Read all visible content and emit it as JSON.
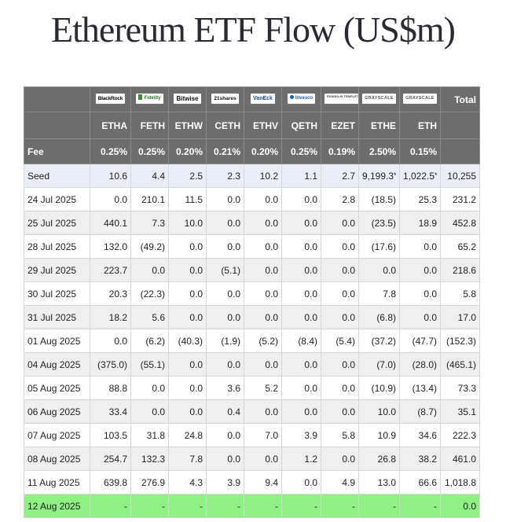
{
  "title": "Ethereum ETF Flow (US$m)",
  "issuers": [
    {
      "name": "BlackRock",
      "logo": "blackrock-logo"
    },
    {
      "name": "Fidelity",
      "logo": "fidelity-logo"
    },
    {
      "name": "Bitwise",
      "logo": "bitwise-logo"
    },
    {
      "name": "21shares",
      "logo": "21shares-logo"
    },
    {
      "name": "VanEck",
      "logo": "vaneck-logo"
    },
    {
      "name": "Invesco",
      "logo": "invesco-logo"
    },
    {
      "name": "FRANKLIN TEMPLETON",
      "logo": "franklin-templeton-logo"
    },
    {
      "name": "GRAYSCALE",
      "logo": "grayscale-logo"
    },
    {
      "name": "GRAYSCALE",
      "logo": "grayscale-logo"
    }
  ],
  "total_label": "Total",
  "tickers": [
    "ETHA",
    "FETH",
    "ETHW",
    "CETH",
    "ETHV",
    "QETH",
    "EZET",
    "ETHE",
    "ETH"
  ],
  "fee_label": "Fee",
  "fees": [
    "0.25%",
    "0.25%",
    "0.20%",
    "0.21%",
    "0.20%",
    "0.25%",
    "0.19%",
    "2.50%",
    "0.15%"
  ],
  "rows": [
    {
      "label": "Seed",
      "type": "seed",
      "values": [
        "10.6",
        "4.4",
        "2.5",
        "2.3",
        "10.2",
        "1.1",
        "2.7",
        "9,199.3",
        "1,022.5"
      ],
      "stars": [
        false,
        false,
        false,
        false,
        false,
        false,
        false,
        true,
        true
      ],
      "total": "10,255"
    },
    {
      "label": "24 Jul 2025",
      "values": [
        "0.0",
        "210.1",
        "11.5",
        "0.0",
        "0.0",
        "0.0",
        "2.8",
        "(18.5)",
        "25.3"
      ],
      "total": "231.2"
    },
    {
      "label": "25 Jul 2025",
      "values": [
        "440.1",
        "7.3",
        "10.0",
        "0.0",
        "0.0",
        "0.0",
        "0.0",
        "(23.5)",
        "18.9"
      ],
      "total": "452.8"
    },
    {
      "label": "28 Jul 2025",
      "values": [
        "132.0",
        "(49.2)",
        "0.0",
        "0.0",
        "0.0",
        "0.0",
        "0.0",
        "(17.6)",
        "0.0"
      ],
      "total": "65.2"
    },
    {
      "label": "29 Jul 2025",
      "values": [
        "223.7",
        "0.0",
        "0.0",
        "(5.1)",
        "0.0",
        "0.0",
        "0.0",
        "0.0",
        "0.0"
      ],
      "total": "218.6"
    },
    {
      "label": "30 Jul 2025",
      "values": [
        "20.3",
        "(22.3)",
        "0.0",
        "0.0",
        "0.0",
        "0.0",
        "0.0",
        "7.8",
        "0.0"
      ],
      "total": "5.8"
    },
    {
      "label": "31 Jul 2025",
      "values": [
        "18.2",
        "5.6",
        "0.0",
        "0.0",
        "0.0",
        "0.0",
        "0.0",
        "(6.8)",
        "0.0"
      ],
      "total": "17.0"
    },
    {
      "label": "01 Aug 2025",
      "values": [
        "0.0",
        "(6.2)",
        "(40.3)",
        "(1.9)",
        "(5.2)",
        "(8.4)",
        "(5.4)",
        "(37.2)",
        "(47.7)"
      ],
      "total": "(152.3)"
    },
    {
      "label": "04 Aug 2025",
      "values": [
        "(375.0)",
        "(55.1)",
        "0.0",
        "0.0",
        "0.0",
        "0.0",
        "0.0",
        "(7.0)",
        "(28.0)"
      ],
      "total": "(465.1)"
    },
    {
      "label": "05 Aug 2025",
      "values": [
        "88.8",
        "0.0",
        "0.0",
        "3.6",
        "5.2",
        "0.0",
        "0.0",
        "(10.9)",
        "(13.4)"
      ],
      "total": "73.3"
    },
    {
      "label": "06 Aug 2025",
      "values": [
        "33.4",
        "0.0",
        "0.0",
        "0.4",
        "0.0",
        "0.0",
        "0.0",
        "10.0",
        "(8.7)"
      ],
      "total": "35.1"
    },
    {
      "label": "07 Aug 2025",
      "values": [
        "103.5",
        "31.8",
        "24.8",
        "0.0",
        "7.0",
        "3.9",
        "5.8",
        "10.9",
        "34.6"
      ],
      "total": "222.3"
    },
    {
      "label": "08 Aug 2025",
      "values": [
        "254.7",
        "132.3",
        "7.8",
        "0.0",
        "0.0",
        "1.2",
        "0.0",
        "26.8",
        "38.2"
      ],
      "total": "461.0"
    },
    {
      "label": "11 Aug 2025",
      "values": [
        "639.8",
        "276.9",
        "4.3",
        "3.9",
        "9.4",
        "0.0",
        "4.9",
        "13.0",
        "66.6"
      ],
      "total": "1,018.8"
    },
    {
      "label": "12 Aug 2025",
      "type": "today",
      "values": [
        "-",
        "-",
        "-",
        "-",
        "-",
        "-",
        "-",
        "-",
        "-"
      ],
      "total": "0.0"
    }
  ],
  "colors": {
    "header_bg": "#6d6d6d",
    "negative": "#d32020",
    "today_bg": "#8ff084",
    "seed_bg": "#e9eef9",
    "stripe_bg": "#efefef"
  }
}
